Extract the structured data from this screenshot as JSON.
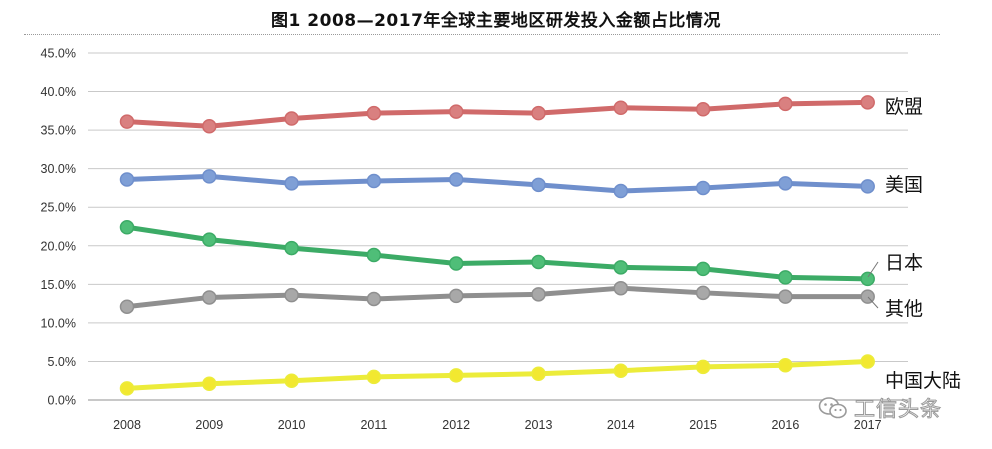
{
  "chart_data": {
    "type": "line",
    "title": "图1  2008—2017年全球主要地区研发投入金额占比情况",
    "xlabel": "",
    "ylabel": "",
    "categories": [
      "2008",
      "2009",
      "2010",
      "2011",
      "2012",
      "2013",
      "2014",
      "2015",
      "2016",
      "2017"
    ],
    "ylim": [
      0,
      45
    ],
    "yticks": [
      "0.0%",
      "5.0%",
      "10.0%",
      "15.0%",
      "20.0%",
      "25.0%",
      "30.0%",
      "35.0%",
      "40.0%",
      "45.0%"
    ],
    "grid": "horizontal",
    "legend": "right-end series labels",
    "series": [
      {
        "name": "欧盟",
        "color": "#d06a6a",
        "marker": "#d98080",
        "values": [
          36.1,
          35.5,
          36.5,
          37.2,
          37.4,
          37.2,
          37.9,
          37.7,
          38.4,
          38.6
        ]
      },
      {
        "name": "美国",
        "color": "#6f8fcc",
        "marker": "#7f9fd6",
        "values": [
          28.6,
          29.0,
          28.1,
          28.4,
          28.6,
          27.9,
          27.1,
          27.5,
          28.1,
          27.7
        ]
      },
      {
        "name": "日本",
        "color": "#3cab66",
        "marker": "#4fbe78",
        "values": [
          22.4,
          20.8,
          19.7,
          18.8,
          17.7,
          17.9,
          17.2,
          17.0,
          15.9,
          15.7
        ]
      },
      {
        "name": "其他",
        "color": "#8f8f8f",
        "marker": "#a8a8a8",
        "values": [
          12.1,
          13.3,
          13.6,
          13.1,
          13.5,
          13.7,
          14.5,
          13.9,
          13.4,
          13.4
        ]
      },
      {
        "name": "中国大陆",
        "color": "#ecec3a",
        "marker": "#f2e830",
        "values": [
          1.5,
          2.1,
          2.5,
          3.0,
          3.2,
          3.4,
          3.8,
          4.3,
          4.5,
          5.0
        ]
      }
    ]
  },
  "watermark": {
    "text": "工信头条",
    "icon": "wechat-icon"
  }
}
